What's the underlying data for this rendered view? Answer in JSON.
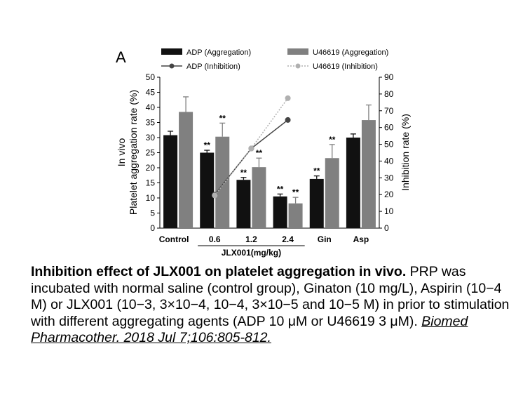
{
  "chart_data": {
    "type": "bar",
    "panel_label": "A",
    "categories": [
      "Control",
      "0.6",
      "1.2",
      "2.4",
      "Gin",
      "Asp"
    ],
    "group_label": "JLX001(mg/kg)",
    "ylabel_left": [
      "In vivo",
      "Platelet aggregation rate (%)"
    ],
    "ylabel_right": "Inhibition rate (%)",
    "ylim_left": [
      0,
      50
    ],
    "yticks_left": [
      "0",
      "5",
      "10",
      "15",
      "20",
      "25",
      "30",
      "35",
      "40",
      "45",
      "50"
    ],
    "ylim_right": [
      0,
      90
    ],
    "yticks_right": [
      "0",
      "10",
      "20",
      "30",
      "40",
      "50",
      "60",
      "70",
      "80",
      "90"
    ],
    "bar_series": [
      {
        "name": "ADP (Aggregation)",
        "color": "#111111",
        "values": [
          30.8,
          25.0,
          16.0,
          10.5,
          16.3,
          30.0
        ],
        "errors": [
          1.3,
          0.8,
          0.8,
          0.8,
          1.0,
          1.2
        ],
        "significance": [
          "",
          "**",
          "**",
          "**",
          "**",
          ""
        ]
      },
      {
        "name": "U46619 (Aggregation)",
        "color": "#808080",
        "values": [
          38.5,
          30.3,
          20.2,
          8.2,
          23.2,
          35.8
        ],
        "errors": [
          5.0,
          4.5,
          3.0,
          2.0,
          4.5,
          5.0
        ],
        "significance": [
          "",
          "**",
          "**",
          "**",
          "**",
          ""
        ]
      }
    ],
    "line_series": [
      {
        "name": "ADP (Inhibition)",
        "color": "#444444",
        "style": "solid",
        "x": [
          "0.6",
          "1.2",
          "2.4"
        ],
        "values": [
          20,
          47.5,
          64.5
        ]
      },
      {
        "name": "U46619 (Inhibition)",
        "color": "#b0b0b0",
        "style": "dotted",
        "x": [
          "0.6",
          "1.2",
          "2.4"
        ],
        "values": [
          19.5,
          47.5,
          77.5
        ]
      }
    ],
    "legend_position": "top"
  },
  "caption": {
    "title": "Inhibition effect of JLX001 on platelet aggregation in vivo.",
    "body": "PRP was incubated with normal saline (control group), Ginaton (10 mg/L), Aspirin (10−4 M) or JLX001 (10−3, 3×10−4, 10−4, 3×10−5 and 10−5 M) in prior to stimulation with different aggregating agents (ADP 10 μM or U46619 3 μM).",
    "citation": "Biomed Pharmacother. 2018 Jul 7;106:805-812."
  }
}
